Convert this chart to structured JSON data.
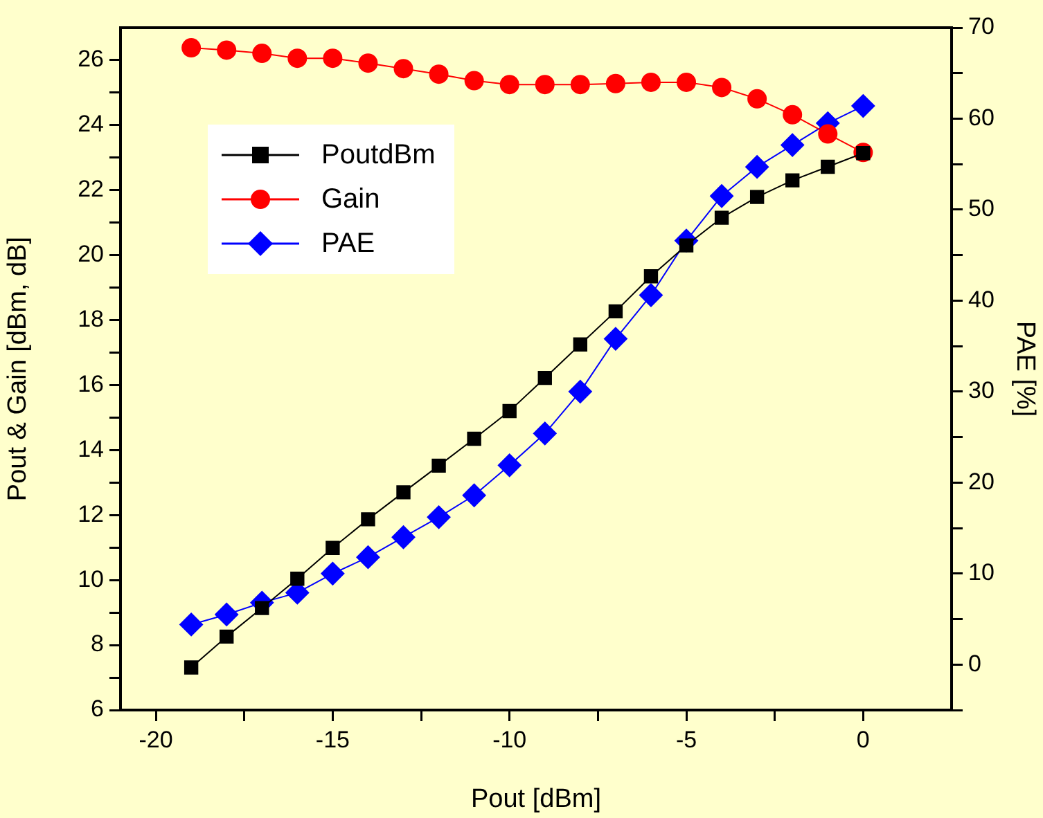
{
  "chart_data": {
    "type": "line",
    "xlabel": "Pout [dBm]",
    "ylabel": "Pout & Gain [dBm, dB]",
    "y2label": "PAE [%]",
    "xlim": [
      -21,
      2.5
    ],
    "xticks": [
      -20,
      {
        "value": -17.5,
        "label": null
      },
      -15,
      {
        "value": -12.5,
        "label": null
      },
      -10,
      {
        "value": -7.5,
        "label": null
      },
      -5,
      {
        "value": -2.5,
        "label": null
      },
      0
    ],
    "ylim": [
      6,
      27
    ],
    "yticks": [
      6,
      {
        "value": 7,
        "label": null
      },
      8,
      {
        "value": 9,
        "label": null
      },
      10,
      {
        "value": 11,
        "label": null
      },
      12,
      {
        "value": 13,
        "label": null
      },
      14,
      {
        "value": 15,
        "label": null
      },
      16,
      {
        "value": 17,
        "label": null
      },
      18,
      {
        "value": 19,
        "label": null
      },
      20,
      {
        "value": 21,
        "label": null
      },
      22,
      {
        "value": 23,
        "label": null
      },
      24,
      {
        "value": 25,
        "label": null
      },
      26
    ],
    "y2lim": [
      -5,
      70
    ],
    "y2ticks": [
      {
        "value": -5,
        "label": null
      },
      0,
      {
        "value": 5,
        "label": null
      },
      10,
      {
        "value": 15,
        "label": null
      },
      20,
      {
        "value": 25,
        "label": null
      },
      30,
      {
        "value": 35,
        "label": null
      },
      40,
      {
        "value": 45,
        "label": null
      },
      50,
      {
        "value": 55,
        "label": null
      },
      60,
      {
        "value": 65,
        "label": null
      },
      70
    ],
    "x": [
      -19,
      -18,
      -17,
      -16,
      -15,
      -14,
      -13,
      -12,
      -11,
      -10,
      -9,
      -8,
      -7,
      -6,
      -5,
      -4,
      -3,
      -2,
      -1,
      0
    ],
    "series": [
      {
        "name": "PoutdBm",
        "color": "#000000",
        "marker": "square",
        "values": [
          7.31,
          8.26,
          9.14,
          10.04,
          10.99,
          11.87,
          12.7,
          13.52,
          14.35,
          15.2,
          16.22,
          17.25,
          18.27,
          19.35,
          20.3,
          21.15,
          21.79,
          22.3,
          22.72,
          23.14
        ]
      },
      {
        "name": "Gain",
        "color": "#ff0000",
        "marker": "circle",
        "values": [
          26.38,
          26.31,
          26.21,
          26.06,
          26.06,
          25.91,
          25.74,
          25.57,
          25.37,
          25.25,
          25.25,
          25.25,
          25.28,
          25.32,
          25.32,
          25.16,
          24.81,
          24.32,
          23.73,
          23.16
        ]
      },
      {
        "name": "PAE",
        "color": "#0000ff",
        "marker": "diamond",
        "axis": "y2",
        "values": [
          4.4,
          5.5,
          6.8,
          7.9,
          10.0,
          11.8,
          14.0,
          16.2,
          18.6,
          21.9,
          25.4,
          30.0,
          35.8,
          40.6,
          46.6,
          51.5,
          54.7,
          57.1,
          59.5,
          61.4
        ]
      }
    ],
    "legend": "top left",
    "grid": false,
    "line_style": "solid"
  }
}
